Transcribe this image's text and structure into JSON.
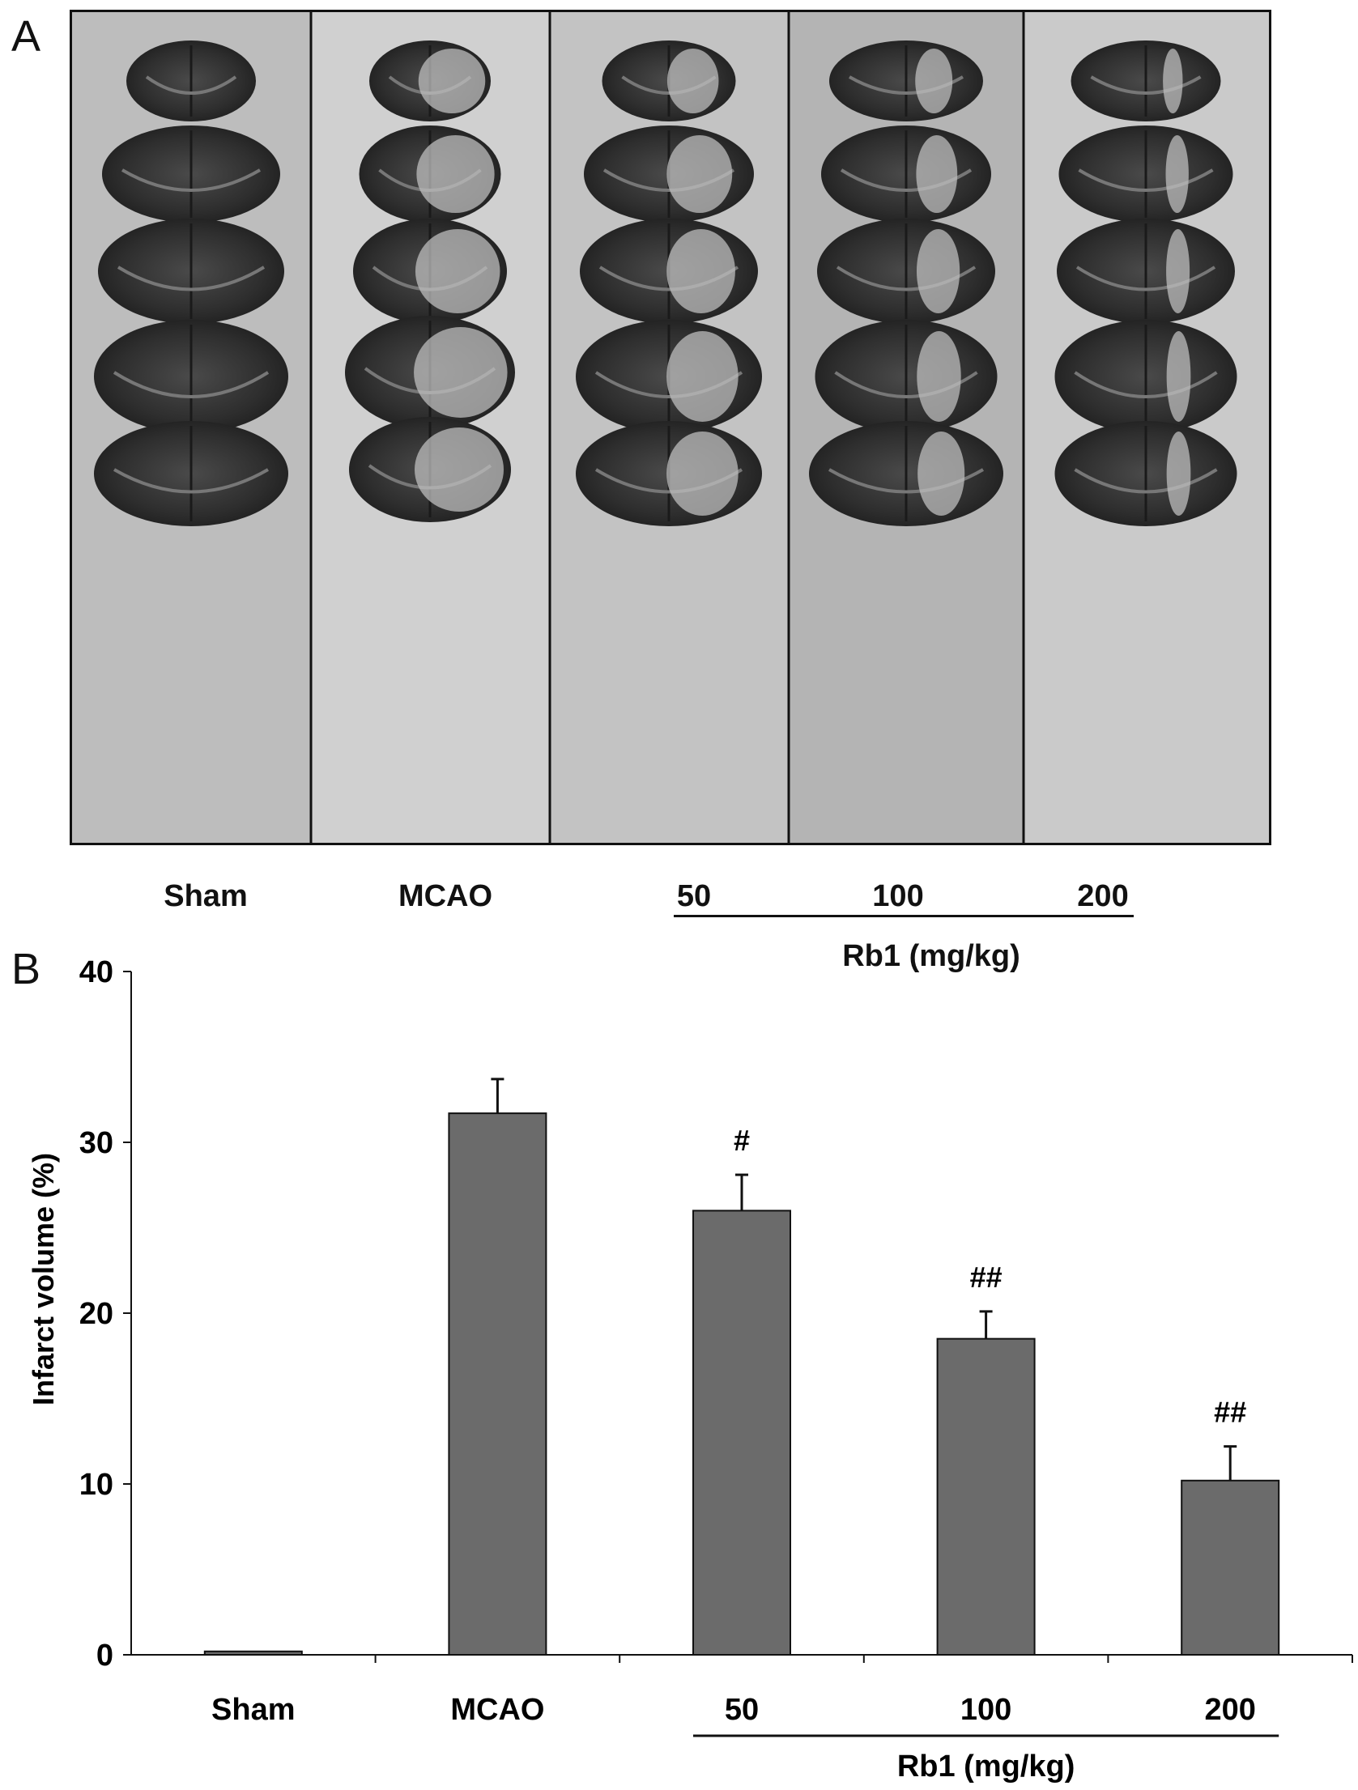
{
  "panel_a": {
    "letter": "A",
    "lanes": [
      "Sham",
      "MCAO",
      "50",
      "100",
      "200"
    ],
    "group_label": "Rb1 (mg/kg)"
  },
  "panel_b": {
    "letter": "B"
  },
  "chart_data": {
    "type": "bar",
    "categories": [
      "Sham",
      "MCAO",
      "50",
      "100",
      "200"
    ],
    "values": [
      0.2,
      31.7,
      26.0,
      18.5,
      10.2
    ],
    "errors": [
      0,
      2.0,
      2.1,
      1.6,
      2.0
    ],
    "significance": [
      "",
      "",
      "#",
      "##",
      "##"
    ],
    "group_label": "Rb1 (mg/kg)",
    "xlabel": "",
    "ylabel": "Infarct volume (%)",
    "ylim": [
      0,
      40
    ],
    "yticks": [
      "0",
      "10",
      "20",
      "30",
      "40"
    ],
    "bar_color": "#6b6b6b",
    "grid": false
  }
}
